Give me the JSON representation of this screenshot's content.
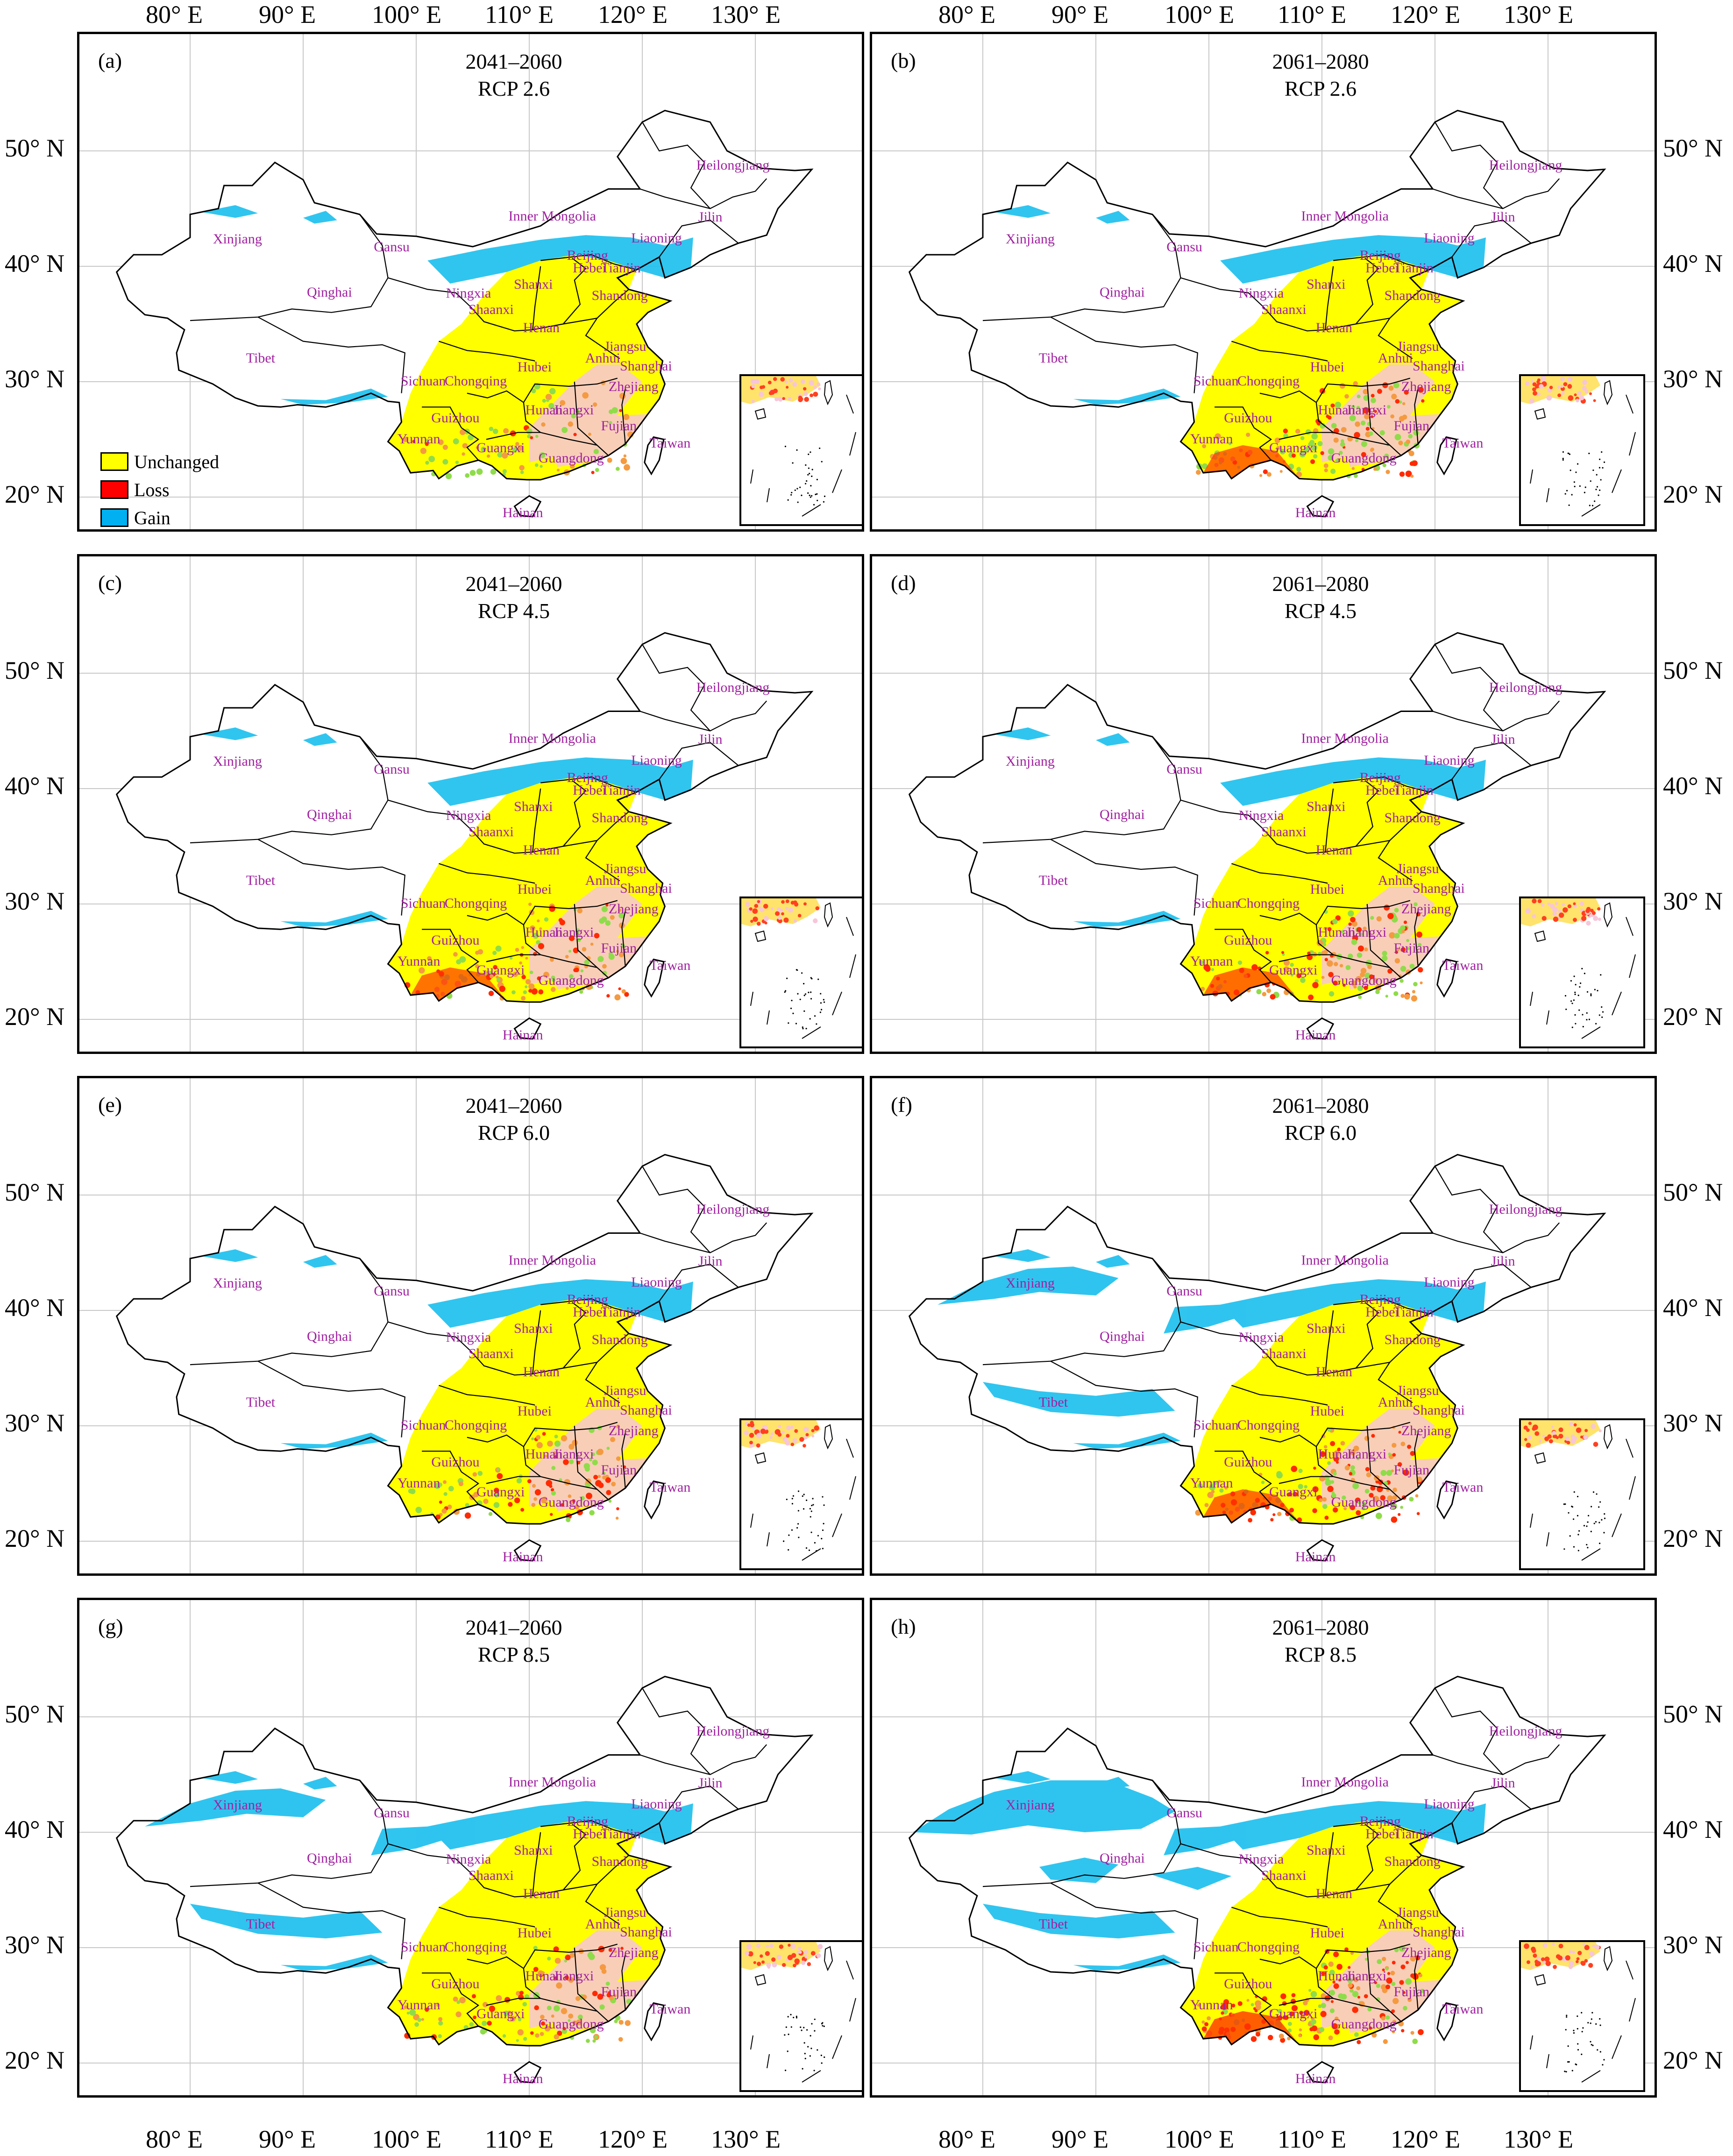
{
  "figure": {
    "top_longitudes": [
      "80° E",
      "90° E",
      "100° E",
      "110° E",
      "120° E",
      "130° E"
    ],
    "bottom_longitudes": [
      "80° E",
      "90° E",
      "100° E",
      "110° E",
      "120° E",
      "130° E"
    ],
    "latitudes": [
      "50° N",
      "40° N",
      "30° N",
      "20° N"
    ],
    "legend": [
      {
        "label": "Unchanged",
        "color": "#ffff00"
      },
      {
        "label": "Loss",
        "color": "#ff0000"
      },
      {
        "label": "Gain",
        "color": "#00b0f0"
      }
    ],
    "panels": [
      {
        "id": "a",
        "label": "(a)",
        "period": "2041–2060",
        "scenario": "RCP 2.6"
      },
      {
        "id": "b",
        "label": "(b)",
        "period": "2061–2080",
        "scenario": "RCP 2.6"
      },
      {
        "id": "c",
        "label": "(c)",
        "period": "2041–2060",
        "scenario": "RCP 4.5"
      },
      {
        "id": "d",
        "label": "(d)",
        "period": "2061–2080",
        "scenario": "RCP 4.5"
      },
      {
        "id": "e",
        "label": "(e)",
        "period": "2041–2060",
        "scenario": "RCP 6.0"
      },
      {
        "id": "f",
        "label": "(f)",
        "period": "2061–2080",
        "scenario": "RCP 6.0"
      },
      {
        "id": "g",
        "label": "(g)",
        "period": "2041–2060",
        "scenario": "RCP 8.5"
      },
      {
        "id": "h",
        "label": "(h)",
        "period": "2061–2080",
        "scenario": "RCP 8.5"
      }
    ],
    "provinces": [
      "Heilongjiang",
      "Jilin",
      "Inner Mongolia",
      "Liaoning",
      "Xinjiang",
      "Gansu",
      "Beijing",
      "Hebei",
      "Tianjin",
      "Qinghai",
      "Ningxia",
      "Shanxi",
      "Shandong",
      "Shaanxi",
      "Henan",
      "Jiangsu",
      "Tibet",
      "Anhui",
      "Shanghai",
      "Sichuan",
      "Chongqing",
      "Hubei",
      "Zhejiang",
      "Hunan",
      "Jiangxi",
      "Guizhou",
      "Fujian",
      "Yunnan",
      "Taiwan",
      "Guangxi",
      "Guangdong",
      "Hainan"
    ]
  }
}
